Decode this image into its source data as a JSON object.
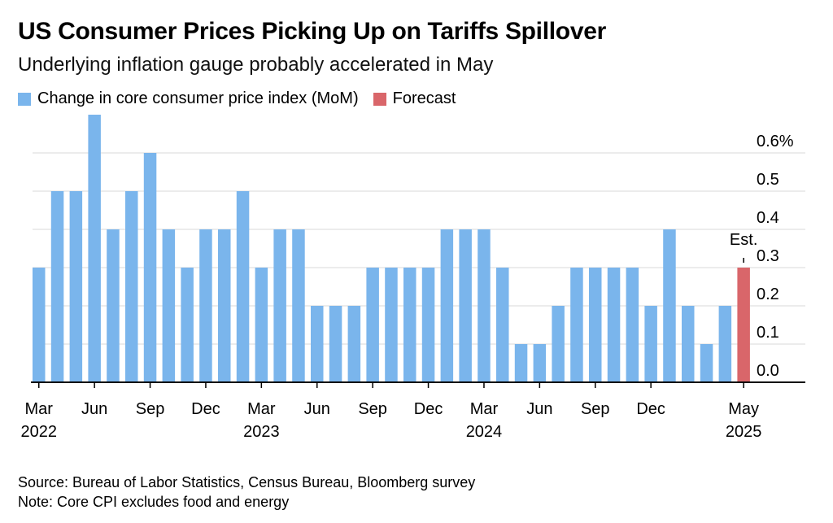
{
  "colors": {
    "actual": "#7ab5ec",
    "forecast": "#d9666a",
    "grid": "#d9d9d9",
    "axis": "#000000"
  },
  "source": "Source: Bureau of Labor Statistics, Census Bureau, Bloomberg survey",
  "note": "Note: Core CPI excludes food and energy",
  "chart_data": {
    "type": "bar",
    "title": "US Consumer Prices Picking Up on Tariffs Spillover",
    "subtitle": "Underlying inflation gauge probably accelerated in May",
    "legend": [
      {
        "label": "Change in core consumer price index (MoM)",
        "color": "#7ab5ec"
      },
      {
        "label": "Forecast",
        "color": "#d9666a"
      }
    ],
    "legend_position": "top-left",
    "ylim": [
      0,
      0.7
    ],
    "y_ticks": [
      "0.0",
      "0.1",
      "0.2",
      "0.3",
      "0.4",
      "0.5",
      "0.6%"
    ],
    "y_tick_values": [
      0,
      0.1,
      0.2,
      0.3,
      0.4,
      0.5,
      0.6
    ],
    "y_axis_side": "right",
    "grid": true,
    "x_tick_labels": [
      {
        "index": 0,
        "label": "Mar",
        "year": "2022"
      },
      {
        "index": 3,
        "label": "Jun"
      },
      {
        "index": 6,
        "label": "Sep"
      },
      {
        "index": 9,
        "label": "Dec"
      },
      {
        "index": 12,
        "label": "Mar",
        "year": "2023"
      },
      {
        "index": 15,
        "label": "Jun"
      },
      {
        "index": 18,
        "label": "Sep"
      },
      {
        "index": 21,
        "label": "Dec"
      },
      {
        "index": 24,
        "label": "Mar",
        "year": "2024"
      },
      {
        "index": 27,
        "label": "Jun"
      },
      {
        "index": 30,
        "label": "Sep"
      },
      {
        "index": 33,
        "label": "Dec"
      },
      {
        "index": 38,
        "label": "May",
        "year": "2025"
      }
    ],
    "annotation": {
      "index": 38,
      "text": "Est."
    },
    "series": [
      {
        "name": "Change in core consumer price index (MoM)",
        "x": [
          "2022-03",
          "2022-04",
          "2022-05",
          "2022-06",
          "2022-07",
          "2022-08",
          "2022-09",
          "2022-10",
          "2022-11",
          "2022-12",
          "2023-01",
          "2023-02",
          "2023-03",
          "2023-04",
          "2023-05",
          "2023-06",
          "2023-07",
          "2023-08",
          "2023-09",
          "2023-10",
          "2023-11",
          "2023-12",
          "2024-01",
          "2024-02",
          "2024-03",
          "2024-04",
          "2024-05",
          "2024-06",
          "2024-07",
          "2024-08",
          "2024-09",
          "2024-10",
          "2024-11",
          "2024-12",
          "2025-01",
          "2025-02",
          "2025-03",
          "2025-04"
        ],
        "values": [
          0.3,
          0.5,
          0.5,
          0.7,
          0.4,
          0.5,
          0.6,
          0.4,
          0.3,
          0.4,
          0.4,
          0.5,
          0.3,
          0.4,
          0.4,
          0.2,
          0.2,
          0.2,
          0.3,
          0.3,
          0.3,
          0.3,
          0.4,
          0.4,
          0.4,
          0.3,
          0.1,
          0.1,
          0.2,
          0.3,
          0.3,
          0.3,
          0.3,
          0.2,
          0.4,
          0.2,
          0.1,
          0.2
        ]
      },
      {
        "name": "Forecast",
        "x": [
          "2025-05"
        ],
        "values": [
          0.3
        ]
      }
    ]
  }
}
